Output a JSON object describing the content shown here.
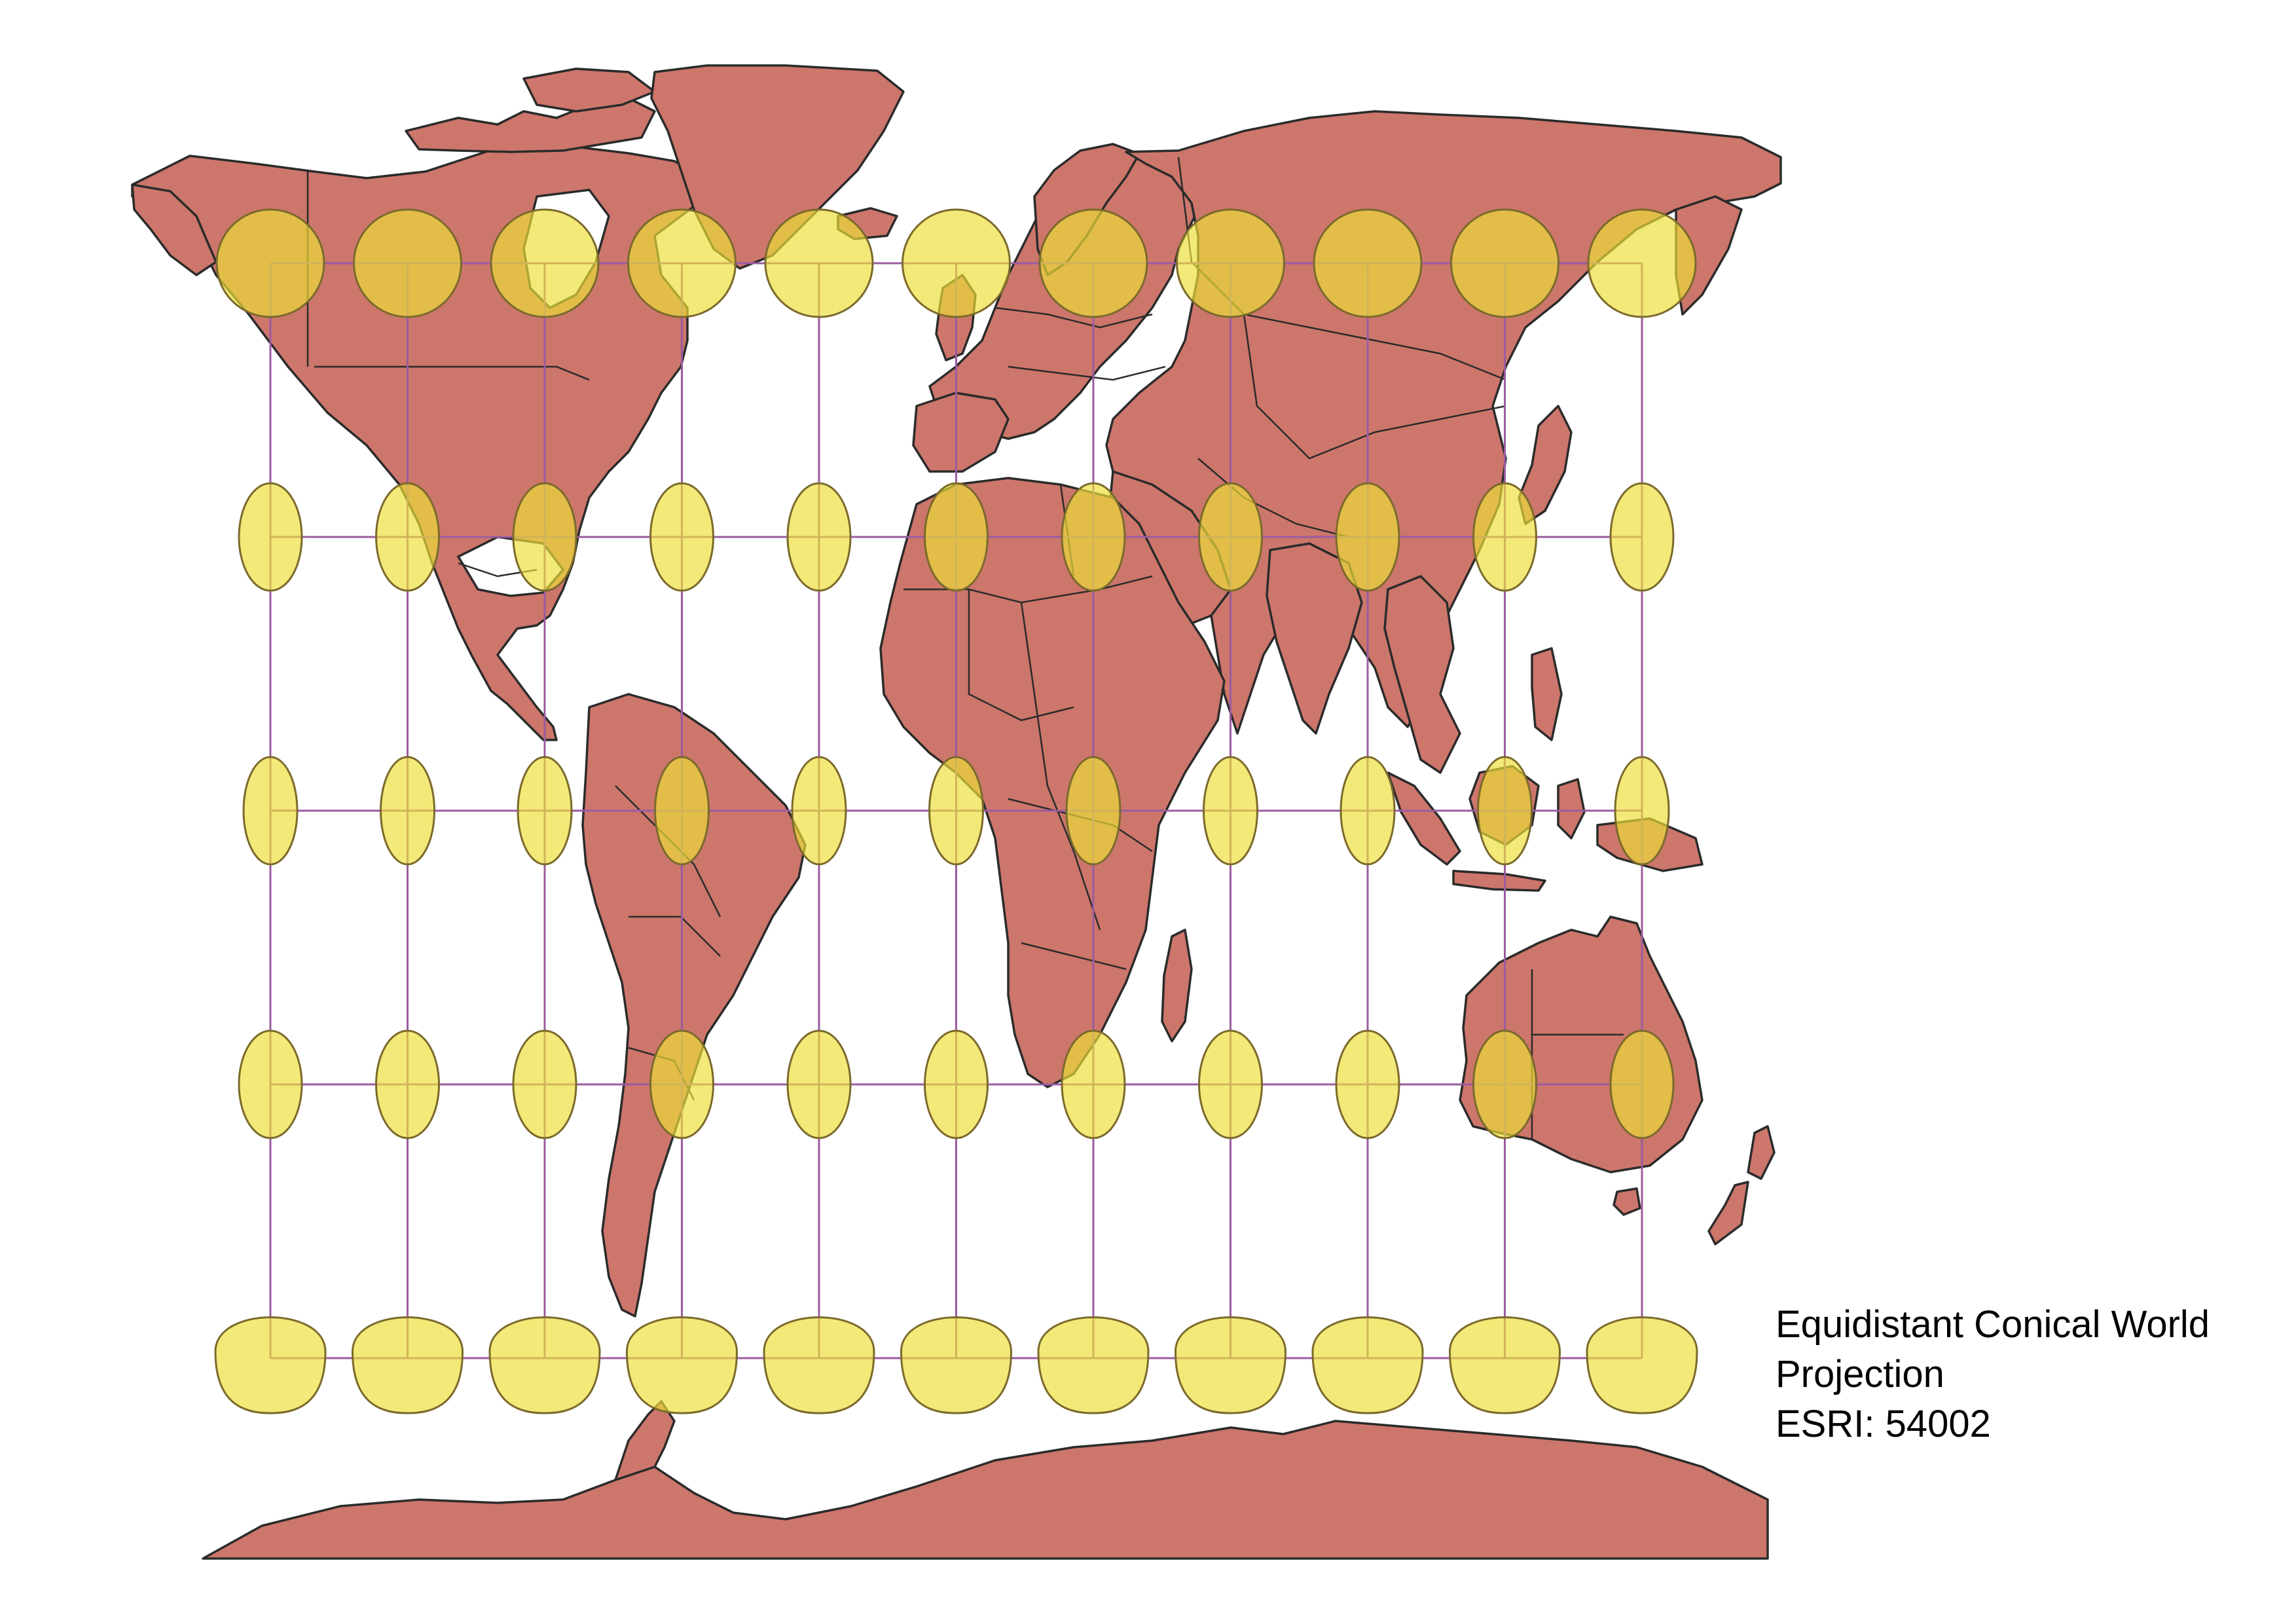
{
  "caption": {
    "line1": "Equidistant Conical World",
    "line2": "Projection",
    "line3": "ESRI: 54002"
  },
  "map": {
    "projection": "Equidistant Conic",
    "graticule": {
      "longitudes": [
        -180,
        -144,
        -108,
        -72,
        -36,
        0,
        36,
        72,
        108,
        144,
        180
      ],
      "latitudes": [
        -80,
        -40,
        0,
        40,
        80
      ]
    },
    "colors": {
      "land": "#cd766b",
      "coastline": "#2b2b2b",
      "graticule": "#9a5ca0",
      "indicatrix_fill": "#ecdf38",
      "indicatrix_stroke": "#7b6a2c",
      "background": "#ffffff"
    }
  }
}
